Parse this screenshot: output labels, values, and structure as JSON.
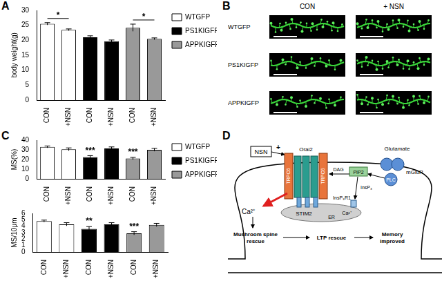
{
  "chart_data": [
    {
      "type": "bar",
      "y_label": "body weight(g)",
      "categories": [
        "CON",
        "+NSN",
        "CON",
        "+NSN",
        "CON",
        "+NSN"
      ],
      "series": [
        {
          "name": "WTGFP",
          "color": "#ffffff",
          "values": [
            25.5,
            23.5,
            null,
            null,
            null,
            null
          ],
          "errors": [
            0.4,
            0.3,
            null,
            null,
            null,
            null
          ]
        },
        {
          "name": "PS1KIGFP",
          "color": "#000000",
          "values": [
            null,
            null,
            21,
            19.7,
            null,
            null
          ],
          "errors": [
            null,
            null,
            0.5,
            0.4,
            null,
            null
          ]
        },
        {
          "name": "APPKIGFP",
          "color": "#999999",
          "values": [
            null,
            null,
            null,
            null,
            24.2,
            20.5
          ],
          "errors": [
            null,
            null,
            null,
            null,
            1.2,
            0.3
          ]
        }
      ],
      "ylim": [
        0,
        30
      ],
      "yticks": [
        0,
        5,
        10,
        15,
        20,
        25,
        30
      ],
      "grid": false,
      "legend": "top right",
      "significance": [
        {
          "between": [
            0,
            1
          ],
          "label": "*"
        },
        {
          "between": [
            4,
            5
          ],
          "label": "*"
        }
      ]
    },
    {
      "type": "bar",
      "y_label": "MS(%)",
      "categories": [
        "CON",
        "+NSN",
        "CON",
        "+NSN",
        "CON",
        "+NSN"
      ],
      "series": [
        {
          "name": "WTGFP",
          "color": "#ffffff",
          "values": [
            33,
            30.5,
            null,
            null,
            null,
            null
          ],
          "errors": [
            1,
            1.5,
            null,
            null,
            null,
            null
          ]
        },
        {
          "name": "PS1KIGFP",
          "color": "#000000",
          "values": [
            null,
            null,
            22.5,
            31.5,
            null,
            null
          ],
          "errors": [
            null,
            null,
            1.5,
            1.5,
            null,
            null
          ]
        },
        {
          "name": "APPKIGFP",
          "color": "#999999",
          "values": [
            null,
            null,
            null,
            null,
            21,
            30
          ],
          "errors": [
            null,
            null,
            null,
            null,
            1.2,
            1.5
          ]
        }
      ],
      "ylim": [
        0,
        40
      ],
      "yticks": [
        0,
        10,
        20,
        30,
        40
      ],
      "grid": false,
      "legend": "top right",
      "significance": [
        {
          "at": 2,
          "label": "***"
        },
        {
          "at": 4,
          "label": "***"
        }
      ]
    },
    {
      "type": "bar",
      "y_label": "MS/10μm",
      "categories": [
        "CON",
        "+NSN",
        "CON",
        "+NSN",
        "CON",
        "+NSN"
      ],
      "series": [
        {
          "color": "#ffffff",
          "values": [
            4.8,
            4.3,
            null,
            null,
            null,
            null
          ],
          "errors": [
            0.15,
            0.25,
            null,
            null,
            null,
            null
          ]
        },
        {
          "color": "#000000",
          "values": [
            null,
            null,
            3.6,
            4.3,
            null,
            null
          ],
          "errors": [
            null,
            null,
            0.35,
            0.25,
            null,
            null
          ]
        },
        {
          "color": "#999999",
          "values": [
            null,
            null,
            null,
            null,
            2.9,
            4.2
          ],
          "errors": [
            null,
            null,
            null,
            null,
            0.25,
            0.25
          ]
        }
      ],
      "ylim": [
        0,
        6
      ],
      "yticks": [
        0,
        1,
        2,
        3,
        4,
        5,
        6
      ],
      "grid": false,
      "significance": [
        {
          "at": 2,
          "label": "**"
        },
        {
          "at": 4,
          "label": "***"
        }
      ]
    }
  ],
  "panel_labels": [
    "A",
    "B",
    "C",
    "D"
  ],
  "panel_b": {
    "columns": [
      "CON",
      "+ NSN"
    ],
    "rows": [
      "WTGFP",
      "PS1KIGFP",
      "APPKIGFP"
    ]
  },
  "panel_d": {
    "stimulus": "NSN",
    "plus": "+",
    "orai": "Orai2",
    "trpc": "TRPC6",
    "glutamate": "Glutamate",
    "receptor": "mGluR",
    "plc": "PLC",
    "pip2": "PIP2",
    "dag": "DAG",
    "insp3": "InsP₃",
    "insp3r": "InsP₃R1",
    "stim": "STIM2",
    "er": "ER",
    "calcium": "Ca²⁺",
    "outcomes": [
      [
        "Mushroom spine",
        "rescue"
      ],
      [
        "LTP rescue"
      ],
      [
        "Memory",
        "improved"
      ]
    ]
  }
}
